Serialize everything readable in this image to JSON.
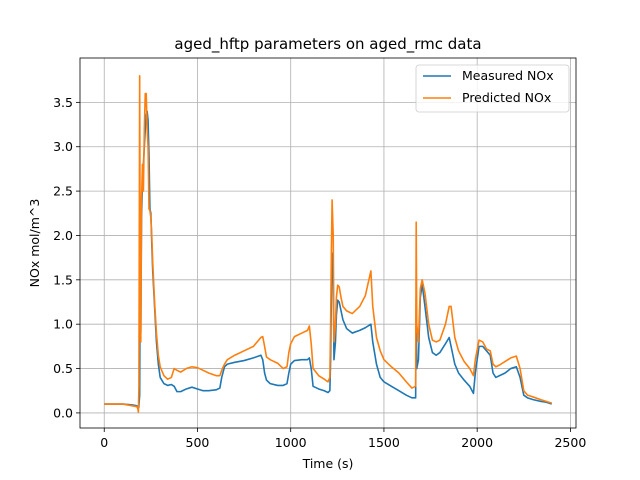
{
  "chart_data": {
    "type": "line",
    "title": "aged_hftp parameters on aged_rmc data",
    "xlabel": "Time (s)",
    "ylabel": "NOx mol/m^3",
    "xlim": [
      -130,
      2530
    ],
    "ylim": [
      -0.17,
      4.0
    ],
    "grid": true,
    "legend_placement": "top-right",
    "x_ticks": [
      0,
      500,
      1000,
      1500,
      2000,
      2500
    ],
    "x_tick_labels": [
      "0",
      "500",
      "1000",
      "1500",
      "2000",
      "2500"
    ],
    "y_ticks": [
      0.0,
      0.5,
      1.0,
      1.5,
      2.0,
      2.5,
      3.0,
      3.5
    ],
    "y_tick_labels": [
      "0.0",
      "0.5",
      "1.0",
      "1.5",
      "2.0",
      "2.5",
      "3.0",
      "3.5"
    ],
    "series": [
      {
        "name": "Measured NOx",
        "color": "#1f77b4",
        "points": [
          [
            0,
            0.1
          ],
          [
            50,
            0.1
          ],
          [
            100,
            0.1
          ],
          [
            150,
            0.09
          ],
          [
            175,
            0.08
          ],
          [
            185,
            0.06
          ],
          [
            190,
            0.2
          ],
          [
            193,
            1.8
          ],
          [
            196,
            0.9
          ],
          [
            200,
            2.2
          ],
          [
            205,
            2.6
          ],
          [
            210,
            2.8
          ],
          [
            215,
            3.0
          ],
          [
            220,
            3.2
          ],
          [
            225,
            3.35
          ],
          [
            230,
            3.4
          ],
          [
            235,
            3.3
          ],
          [
            240,
            2.9
          ],
          [
            245,
            2.3
          ],
          [
            250,
            2.25
          ],
          [
            255,
            1.9
          ],
          [
            260,
            1.6
          ],
          [
            270,
            1.2
          ],
          [
            280,
            0.8
          ],
          [
            290,
            0.55
          ],
          [
            300,
            0.4
          ],
          [
            320,
            0.33
          ],
          [
            340,
            0.31
          ],
          [
            360,
            0.32
          ],
          [
            375,
            0.3
          ],
          [
            390,
            0.24
          ],
          [
            410,
            0.24
          ],
          [
            440,
            0.27
          ],
          [
            470,
            0.29
          ],
          [
            500,
            0.27
          ],
          [
            530,
            0.25
          ],
          [
            560,
            0.25
          ],
          [
            600,
            0.26
          ],
          [
            620,
            0.28
          ],
          [
            630,
            0.4
          ],
          [
            645,
            0.52
          ],
          [
            660,
            0.55
          ],
          [
            700,
            0.57
          ],
          [
            750,
            0.59
          ],
          [
            800,
            0.62
          ],
          [
            840,
            0.65
          ],
          [
            850,
            0.6
          ],
          [
            860,
            0.45
          ],
          [
            870,
            0.37
          ],
          [
            890,
            0.33
          ],
          [
            930,
            0.31
          ],
          [
            960,
            0.31
          ],
          [
            980,
            0.33
          ],
          [
            990,
            0.45
          ],
          [
            1000,
            0.55
          ],
          [
            1020,
            0.59
          ],
          [
            1060,
            0.6
          ],
          [
            1090,
            0.6
          ],
          [
            1100,
            0.62
          ],
          [
            1110,
            0.5
          ],
          [
            1120,
            0.3
          ],
          [
            1150,
            0.27
          ],
          [
            1180,
            0.25
          ],
          [
            1200,
            0.23
          ],
          [
            1210,
            0.25
          ],
          [
            1214,
            0.6
          ],
          [
            1218,
            1.3
          ],
          [
            1222,
            1.8
          ],
          [
            1228,
            1.5
          ],
          [
            1232,
            0.6
          ],
          [
            1240,
            0.8
          ],
          [
            1245,
            1.1
          ],
          [
            1252,
            1.27
          ],
          [
            1260,
            1.25
          ],
          [
            1270,
            1.15
          ],
          [
            1280,
            1.05
          ],
          [
            1300,
            0.95
          ],
          [
            1330,
            0.9
          ],
          [
            1370,
            0.93
          ],
          [
            1400,
            0.96
          ],
          [
            1430,
            1.0
          ],
          [
            1440,
            0.8
          ],
          [
            1460,
            0.55
          ],
          [
            1480,
            0.4
          ],
          [
            1500,
            0.35
          ],
          [
            1540,
            0.3
          ],
          [
            1580,
            0.25
          ],
          [
            1620,
            0.2
          ],
          [
            1650,
            0.17
          ],
          [
            1670,
            0.17
          ],
          [
            1673,
            1.3
          ],
          [
            1676,
            0.5
          ],
          [
            1685,
            0.6
          ],
          [
            1695,
            1.3
          ],
          [
            1705,
            1.45
          ],
          [
            1720,
            1.2
          ],
          [
            1740,
            0.85
          ],
          [
            1760,
            0.68
          ],
          [
            1780,
            0.65
          ],
          [
            1800,
            0.68
          ],
          [
            1830,
            0.78
          ],
          [
            1850,
            0.85
          ],
          [
            1860,
            0.75
          ],
          [
            1880,
            0.55
          ],
          [
            1900,
            0.45
          ],
          [
            1930,
            0.37
          ],
          [
            1960,
            0.3
          ],
          [
            1980,
            0.22
          ],
          [
            1990,
            0.45
          ],
          [
            2010,
            0.75
          ],
          [
            2030,
            0.75
          ],
          [
            2050,
            0.7
          ],
          [
            2070,
            0.65
          ],
          [
            2085,
            0.45
          ],
          [
            2100,
            0.4
          ],
          [
            2120,
            0.42
          ],
          [
            2150,
            0.45
          ],
          [
            2180,
            0.5
          ],
          [
            2210,
            0.52
          ],
          [
            2230,
            0.4
          ],
          [
            2250,
            0.2
          ],
          [
            2270,
            0.17
          ],
          [
            2300,
            0.15
          ],
          [
            2340,
            0.13
          ],
          [
            2370,
            0.12
          ],
          [
            2400,
            0.1
          ]
        ]
      },
      {
        "name": "Predicted NOx",
        "color": "#ff7f0e",
        "points": [
          [
            0,
            0.1
          ],
          [
            50,
            0.1
          ],
          [
            100,
            0.1
          ],
          [
            150,
            0.08
          ],
          [
            175,
            0.07
          ],
          [
            180,
            0.05
          ],
          [
            183,
            0.01
          ],
          [
            186,
            0.3
          ],
          [
            190,
            3.8
          ],
          [
            193,
            1.5
          ],
          [
            196,
            0.8
          ],
          [
            200,
            2.4
          ],
          [
            205,
            2.8
          ],
          [
            210,
            2.5
          ],
          [
            215,
            3.2
          ],
          [
            220,
            3.6
          ],
          [
            225,
            3.6
          ],
          [
            230,
            3.2
          ],
          [
            235,
            3.0
          ],
          [
            240,
            2.3
          ],
          [
            245,
            2.28
          ],
          [
            250,
            2.2
          ],
          [
            255,
            2.0
          ],
          [
            260,
            1.7
          ],
          [
            270,
            1.25
          ],
          [
            280,
            0.9
          ],
          [
            290,
            0.65
          ],
          [
            300,
            0.52
          ],
          [
            320,
            0.42
          ],
          [
            340,
            0.38
          ],
          [
            360,
            0.4
          ],
          [
            375,
            0.5
          ],
          [
            390,
            0.48
          ],
          [
            410,
            0.46
          ],
          [
            440,
            0.5
          ],
          [
            470,
            0.52
          ],
          [
            500,
            0.51
          ],
          [
            530,
            0.48
          ],
          [
            560,
            0.45
          ],
          [
            600,
            0.42
          ],
          [
            620,
            0.42
          ],
          [
            630,
            0.48
          ],
          [
            645,
            0.55
          ],
          [
            660,
            0.6
          ],
          [
            700,
            0.65
          ],
          [
            750,
            0.7
          ],
          [
            800,
            0.75
          ],
          [
            840,
            0.85
          ],
          [
            850,
            0.86
          ],
          [
            860,
            0.75
          ],
          [
            870,
            0.63
          ],
          [
            890,
            0.6
          ],
          [
            930,
            0.56
          ],
          [
            960,
            0.5
          ],
          [
            980,
            0.52
          ],
          [
            990,
            0.68
          ],
          [
            1000,
            0.78
          ],
          [
            1020,
            0.86
          ],
          [
            1060,
            0.9
          ],
          [
            1090,
            0.93
          ],
          [
            1100,
            0.98
          ],
          [
            1110,
            0.78
          ],
          [
            1120,
            0.5
          ],
          [
            1150,
            0.42
          ],
          [
            1180,
            0.38
          ],
          [
            1200,
            0.35
          ],
          [
            1210,
            0.4
          ],
          [
            1214,
            1.0
          ],
          [
            1218,
            1.8
          ],
          [
            1222,
            2.4
          ],
          [
            1228,
            2.0
          ],
          [
            1232,
            0.8
          ],
          [
            1240,
            1.0
          ],
          [
            1245,
            1.3
          ],
          [
            1252,
            1.44
          ],
          [
            1260,
            1.42
          ],
          [
            1270,
            1.3
          ],
          [
            1280,
            1.2
          ],
          [
            1300,
            1.15
          ],
          [
            1330,
            1.12
          ],
          [
            1370,
            1.2
          ],
          [
            1400,
            1.32
          ],
          [
            1430,
            1.6
          ],
          [
            1440,
            1.2
          ],
          [
            1460,
            0.85
          ],
          [
            1480,
            0.7
          ],
          [
            1500,
            0.6
          ],
          [
            1540,
            0.52
          ],
          [
            1580,
            0.45
          ],
          [
            1620,
            0.35
          ],
          [
            1650,
            0.28
          ],
          [
            1670,
            0.3
          ],
          [
            1673,
            2.15
          ],
          [
            1676,
            1.0
          ],
          [
            1685,
            0.8
          ],
          [
            1695,
            1.4
          ],
          [
            1705,
            1.5
          ],
          [
            1720,
            1.35
          ],
          [
            1740,
            1.0
          ],
          [
            1760,
            0.82
          ],
          [
            1780,
            0.8
          ],
          [
            1800,
            0.82
          ],
          [
            1830,
            1.0
          ],
          [
            1850,
            1.2
          ],
          [
            1860,
            1.2
          ],
          [
            1880,
            0.85
          ],
          [
            1900,
            0.7
          ],
          [
            1930,
            0.58
          ],
          [
            1960,
            0.5
          ],
          [
            1980,
            0.42
          ],
          [
            1990,
            0.6
          ],
          [
            2010,
            0.82
          ],
          [
            2030,
            0.8
          ],
          [
            2050,
            0.72
          ],
          [
            2070,
            0.7
          ],
          [
            2085,
            0.55
          ],
          [
            2100,
            0.52
          ],
          [
            2120,
            0.54
          ],
          [
            2150,
            0.58
          ],
          [
            2180,
            0.62
          ],
          [
            2210,
            0.64
          ],
          [
            2230,
            0.5
          ],
          [
            2250,
            0.25
          ],
          [
            2270,
            0.2
          ],
          [
            2300,
            0.18
          ],
          [
            2340,
            0.15
          ],
          [
            2370,
            0.13
          ],
          [
            2400,
            0.11
          ]
        ]
      }
    ]
  }
}
